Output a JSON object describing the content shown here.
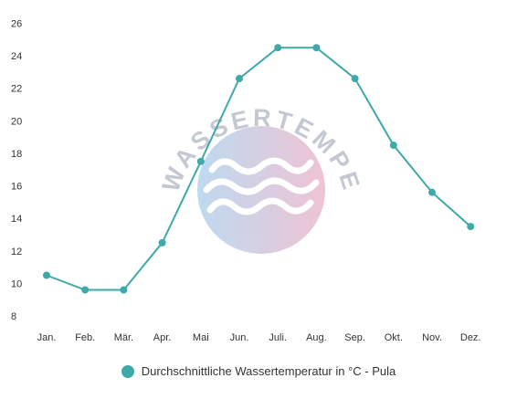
{
  "chart_data": {
    "type": "line",
    "title": "",
    "xlabel": "",
    "ylabel": "",
    "categories": [
      "Jan.",
      "Feb.",
      "Mär.",
      "Apr.",
      "Mai",
      "Jun.",
      "Juli.",
      "Aug.",
      "Sep.",
      "Okt.",
      "Nov.",
      "Dez."
    ],
    "yticks": [
      8,
      10,
      12,
      14,
      16,
      18,
      20,
      22,
      24,
      26
    ],
    "ylim": [
      8,
      26
    ],
    "grid": false,
    "legend_position": "bottom",
    "series": [
      {
        "name": "Durchschnittliche Wassertemperatur in °C - Pula",
        "values": [
          10.5,
          9.6,
          9.6,
          12.5,
          17.5,
          22.6,
          24.5,
          24.5,
          22.6,
          18.5,
          15.6,
          13.5
        ]
      }
    ]
  },
  "colors": {
    "series": "#3fa9a9",
    "axis_text": "#333333"
  },
  "watermark": {
    "text": "WASSERTEMPERATUR.ORG",
    "icon": "waves-circle-icon"
  }
}
